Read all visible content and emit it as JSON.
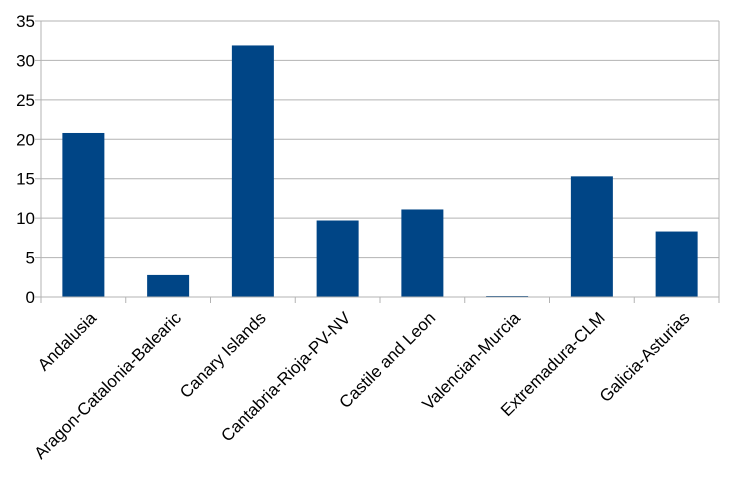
{
  "colors": {
    "bar": "#004586",
    "grid": "#b3b3b3",
    "axis": "#b3b3b3",
    "text": "#000000"
  },
  "chart_data": {
    "type": "bar",
    "categories": [
      "Andalusia",
      "Aragon-Catalonia-Balearic",
      "Canary Islands",
      "Cantabria-Rioja-PV-NV",
      "Castile and Leon",
      "Valencian-Murcia",
      "Extremadura-CLM",
      "Galicia-Asturias"
    ],
    "values": [
      20.8,
      2.8,
      31.9,
      9.7,
      11.1,
      0.1,
      15.3,
      8.3
    ],
    "ylim": [
      0,
      35
    ],
    "yticks": [
      "0",
      "5",
      "10",
      "15",
      "20",
      "25",
      "30",
      "35"
    ],
    "ytick_values": [
      0,
      5,
      10,
      15,
      20,
      25,
      30,
      35
    ],
    "title": "",
    "xlabel": "",
    "ylabel": "",
    "grid": true,
    "legend": "none"
  }
}
